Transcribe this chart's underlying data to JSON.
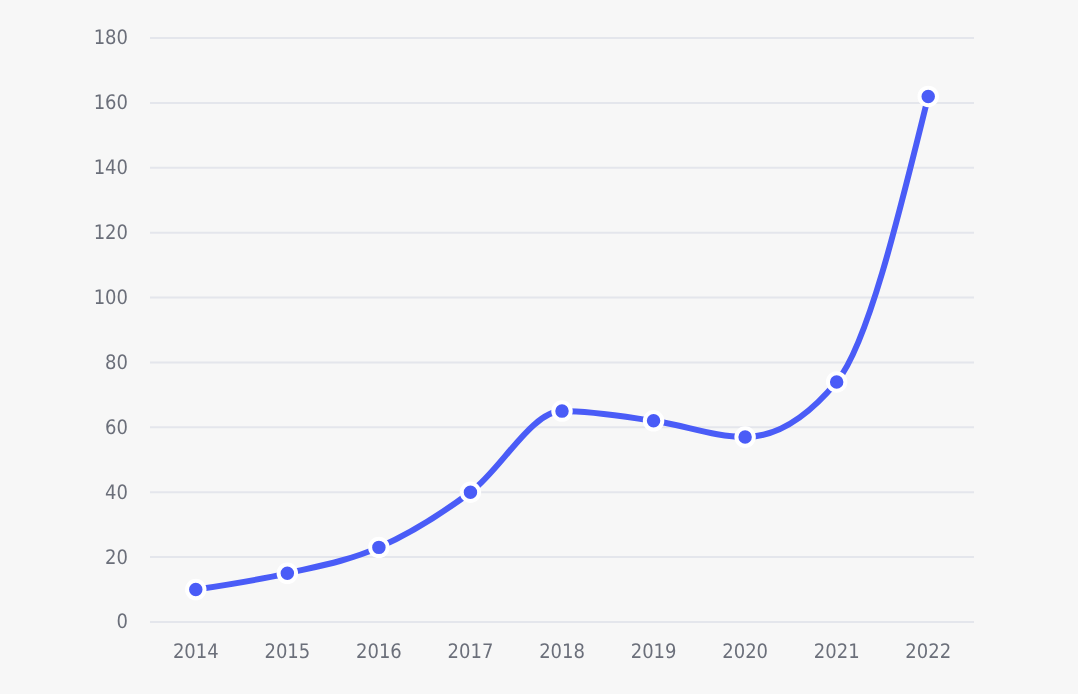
{
  "chart_data": {
    "type": "line",
    "categories": [
      "2014",
      "2015",
      "2016",
      "2017",
      "2018",
      "2019",
      "2020",
      "2021",
      "2022"
    ],
    "series": [
      {
        "color": "#4a5cf7",
        "values": [
          10,
          15,
          23,
          40,
          65,
          62,
          57,
          74,
          162
        ]
      }
    ],
    "ylim": [
      0,
      180
    ],
    "yticks": [
      0,
      20,
      40,
      60,
      80,
      100,
      120,
      140,
      160,
      180
    ],
    "grid": "y",
    "marker": "circle",
    "line_style": "solid"
  }
}
